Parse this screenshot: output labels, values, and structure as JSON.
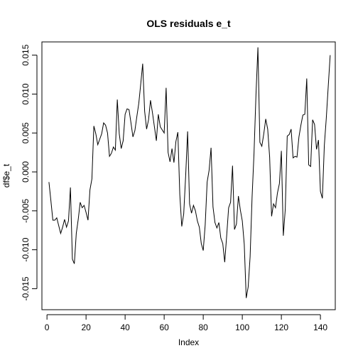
{
  "chart_data": {
    "type": "line",
    "title": "OLS residuals e_t",
    "xlabel": "Index",
    "ylabel": "df$e_t",
    "xlim": [
      -2.6,
      147.6
    ],
    "ylim": [
      -0.0177,
      0.0167
    ],
    "x_ticks": [
      0,
      20,
      40,
      60,
      80,
      100,
      120,
      140
    ],
    "y_ticks": [
      -0.015,
      -0.01,
      -0.005,
      0.0,
      0.005,
      0.01,
      0.015
    ],
    "x_tick_labels": [
      "0",
      "20",
      "40",
      "60",
      "80",
      "100",
      "120",
      "140"
    ],
    "y_tick_labels": [
      "-0.015",
      "-0.010",
      "-0.005",
      "0.000",
      "0.005",
      "0.010",
      "0.015"
    ],
    "grid": false,
    "line_color": "#000000",
    "y": [
      -0.0013,
      -0.0037,
      -0.0062,
      -0.0062,
      -0.0059,
      -0.0069,
      -0.0079,
      -0.0071,
      -0.0061,
      -0.0071,
      -0.0063,
      -0.002,
      -0.0112,
      -0.0118,
      -0.0079,
      -0.0061,
      -0.0039,
      -0.0046,
      -0.0043,
      -0.0052,
      -0.0062,
      -0.0023,
      -0.0009,
      0.0059,
      0.0049,
      0.0035,
      0.0042,
      0.0049,
      0.0063,
      0.006,
      0.005,
      0.002,
      0.0024,
      0.0032,
      0.0028,
      0.0093,
      0.0049,
      0.003,
      0.004,
      0.0074,
      0.0081,
      0.008,
      0.0063,
      0.0045,
      0.0053,
      0.0071,
      0.0088,
      0.0113,
      0.0139,
      0.0078,
      0.0055,
      0.0067,
      0.0092,
      0.0076,
      0.0058,
      0.004,
      0.0074,
      0.0058,
      0.0054,
      0.005,
      0.0108,
      0.0025,
      0.0013,
      0.003,
      0.0012,
      0.0039,
      0.0051,
      -0.0029,
      -0.007,
      -0.0054,
      -0.0005,
      0.0052,
      -0.0041,
      -0.0053,
      -0.0043,
      -0.005,
      -0.0063,
      -0.0071,
      -0.0092,
      -0.0101,
      -0.0068,
      -0.0013,
      0.0002,
      0.0031,
      -0.0045,
      -0.0065,
      -0.0072,
      -0.0065,
      -0.0085,
      -0.0092,
      -0.0116,
      -0.0082,
      -0.0046,
      -0.0039,
      0.0008,
      -0.0074,
      -0.0067,
      -0.0031,
      -0.0049,
      -0.0063,
      -0.0093,
      -0.0162,
      -0.0148,
      -0.0109,
      -0.0033,
      0.0024,
      0.0099,
      0.016,
      0.0038,
      0.0033,
      0.0049,
      0.0068,
      0.0055,
      0.0019,
      -0.0057,
      -0.0041,
      -0.0046,
      -0.0027,
      -0.0015,
      0.0027,
      -0.0082,
      -0.0048,
      0.0046,
      0.0048,
      0.0055,
      0.0018,
      0.002,
      0.0019,
      0.0045,
      0.006,
      0.0073,
      0.0074,
      0.012,
      0.0009,
      0.0007,
      0.0067,
      0.0061,
      0.0029,
      0.0041,
      -0.0025,
      -0.0034,
      0.0034,
      0.0069,
      0.011,
      0.015
    ]
  }
}
